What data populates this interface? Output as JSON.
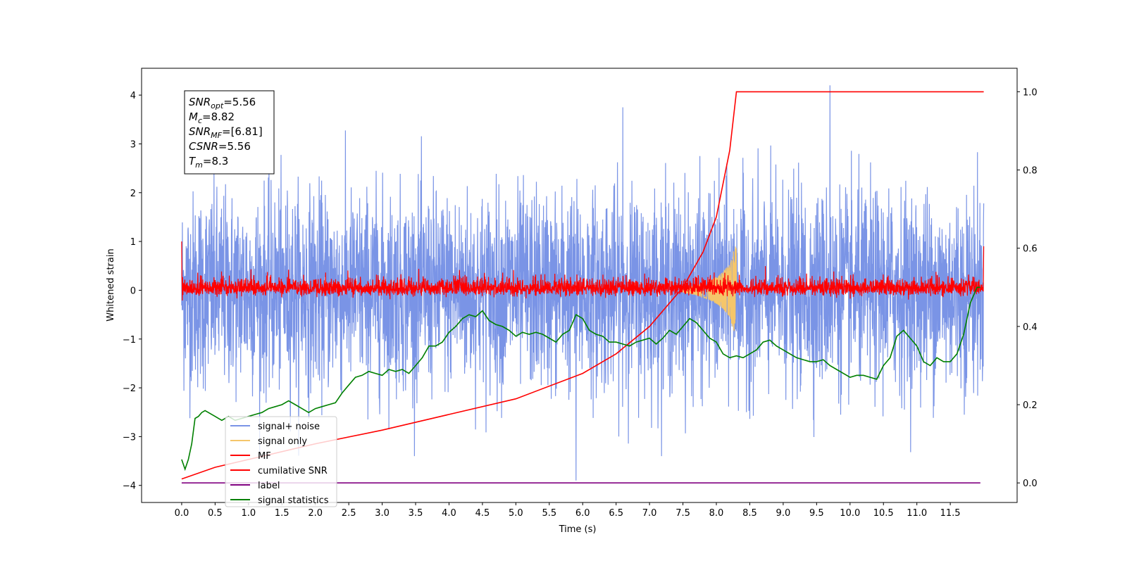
{
  "chart_data": {
    "type": "line",
    "xlabel": "Time (s)",
    "ylabel": "Whitened strain",
    "xlim": [
      -0.6,
      12.5
    ],
    "ylim": [
      -4.35,
      4.55
    ],
    "y2lim": [
      -0.05,
      1.06
    ],
    "x_ticks": [
      "0.0",
      "0.5",
      "1.0",
      "1.5",
      "2.0",
      "2.5",
      "3.0",
      "3.5",
      "4.0",
      "4.5",
      "5.0",
      "5.5",
      "6.0",
      "6.5",
      "7.0",
      "7.5",
      "8.0",
      "8.5",
      "9.0",
      "9.5",
      "10.0",
      "10.5",
      "11.0",
      "11.5"
    ],
    "y_ticks": [
      "4",
      "3",
      "2",
      "1",
      "0",
      "−1",
      "−2",
      "−3",
      "−4"
    ],
    "y2_ticks": [
      "1.0",
      "0.8",
      "0.6",
      "0.4",
      "0.2",
      "0.0"
    ],
    "legend_position": "lower left",
    "annotation": [
      {
        "name": "SNR",
        "sub": "opt",
        "value": "=5.56"
      },
      {
        "name": "M",
        "sub": "c",
        "value": "=8.82"
      },
      {
        "name": "SNR",
        "sub": "MF",
        "value": "=[6.81]"
      },
      {
        "name": "CSNR",
        "sub": "",
        "value": "=5.56"
      },
      {
        "name": "T",
        "sub": "m",
        "value": "=8.3"
      }
    ],
    "series": [
      {
        "name": "signal+ noise",
        "color": "#7a94e6",
        "axis": "left",
        "description_values": {
          "t_start": 0.0,
          "t_end": 12.0,
          "typical_range": [
            -2.6,
            2.8
          ],
          "peaks": [
            [
              5.9,
              -3.9
            ],
            [
              9.7,
              4.2
            ],
            [
              6.6,
              3.75
            ]
          ]
        }
      },
      {
        "name": "signal only",
        "color": "#f5c66a",
        "axis": "left",
        "x": [
          7.5,
          7.7,
          7.9,
          8.0,
          8.1,
          8.2,
          8.25,
          8.3
        ],
        "envelope": [
          0.05,
          0.1,
          0.2,
          0.28,
          0.38,
          0.55,
          0.8,
          0.95
        ]
      },
      {
        "name": "MF",
        "color": "#ff0000",
        "axis": "left",
        "description_values": {
          "t_start": 0.0,
          "t_end": 12.0,
          "typical_range": [
            -0.2,
            0.3
          ],
          "start_value": 1.0,
          "end_value": 0.9
        }
      },
      {
        "name": "cumilative SNR",
        "color": "#ff0000",
        "axis": "right",
        "x": [
          0.0,
          0.5,
          1.0,
          2.0,
          3.0,
          4.0,
          5.0,
          6.0,
          6.5,
          7.0,
          7.5,
          7.8,
          8.0,
          8.2,
          8.3,
          12.0
        ],
        "values": [
          0.01,
          0.04,
          0.06,
          0.1,
          0.135,
          0.175,
          0.215,
          0.28,
          0.33,
          0.4,
          0.5,
          0.59,
          0.68,
          0.85,
          1.0,
          1.0
        ]
      },
      {
        "name": "label",
        "color": "#800080",
        "axis": "right",
        "x": [
          0.0,
          11.95
        ],
        "values": [
          0.0,
          0.0
        ]
      },
      {
        "name": "signal statistics",
        "color": "#008000",
        "axis": "right",
        "x": [
          0.0,
          0.05,
          0.1,
          0.15,
          0.2,
          0.25,
          0.3,
          0.35,
          0.4,
          0.5,
          0.6,
          0.7,
          0.8,
          0.9,
          1.0,
          1.1,
          1.2,
          1.3,
          1.4,
          1.5,
          1.6,
          1.7,
          1.8,
          1.9,
          2.0,
          2.1,
          2.2,
          2.3,
          2.4,
          2.5,
          2.6,
          2.7,
          2.8,
          2.9,
          3.0,
          3.1,
          3.2,
          3.3,
          3.4,
          3.5,
          3.6,
          3.7,
          3.8,
          3.9,
          4.0,
          4.1,
          4.2,
          4.3,
          4.4,
          4.5,
          4.6,
          4.7,
          4.8,
          4.9,
          5.0,
          5.1,
          5.2,
          5.3,
          5.4,
          5.5,
          5.6,
          5.7,
          5.8,
          5.9,
          6.0,
          6.1,
          6.2,
          6.3,
          6.4,
          6.5,
          6.6,
          6.7,
          6.8,
          6.9,
          7.0,
          7.1,
          7.2,
          7.3,
          7.4,
          7.5,
          7.6,
          7.7,
          7.8,
          7.9,
          8.0,
          8.1,
          8.2,
          8.3,
          8.4,
          8.5,
          8.6,
          8.7,
          8.8,
          8.9,
          9.0,
          9.1,
          9.2,
          9.3,
          9.4,
          9.5,
          9.6,
          9.7,
          9.8,
          9.9,
          10.0,
          10.1,
          10.2,
          10.3,
          10.4,
          10.5,
          10.6,
          10.7,
          10.8,
          10.9,
          11.0,
          11.1,
          11.2,
          11.3,
          11.4,
          11.5,
          11.6,
          11.7,
          11.8,
          11.9,
          11.95
        ],
        "values": [
          0.06,
          0.035,
          0.06,
          0.1,
          0.165,
          0.17,
          0.18,
          0.185,
          0.18,
          0.17,
          0.16,
          0.17,
          0.16,
          0.165,
          0.17,
          0.175,
          0.18,
          0.19,
          0.195,
          0.2,
          0.21,
          0.2,
          0.19,
          0.18,
          0.19,
          0.195,
          0.2,
          0.205,
          0.23,
          0.25,
          0.27,
          0.275,
          0.285,
          0.28,
          0.275,
          0.29,
          0.285,
          0.29,
          0.28,
          0.3,
          0.32,
          0.35,
          0.35,
          0.36,
          0.385,
          0.4,
          0.42,
          0.43,
          0.425,
          0.44,
          0.415,
          0.405,
          0.4,
          0.39,
          0.375,
          0.385,
          0.38,
          0.385,
          0.38,
          0.37,
          0.36,
          0.38,
          0.39,
          0.43,
          0.42,
          0.39,
          0.38,
          0.375,
          0.36,
          0.36,
          0.355,
          0.35,
          0.36,
          0.365,
          0.37,
          0.355,
          0.37,
          0.39,
          0.38,
          0.4,
          0.42,
          0.41,
          0.39,
          0.37,
          0.36,
          0.33,
          0.32,
          0.325,
          0.32,
          0.33,
          0.34,
          0.36,
          0.365,
          0.35,
          0.34,
          0.33,
          0.32,
          0.315,
          0.31,
          0.31,
          0.315,
          0.3,
          0.29,
          0.28,
          0.27,
          0.275,
          0.275,
          0.27,
          0.265,
          0.3,
          0.32,
          0.375,
          0.39,
          0.37,
          0.35,
          0.31,
          0.3,
          0.32,
          0.31,
          0.31,
          0.33,
          0.38,
          0.46,
          0.5,
          0.5
        ]
      }
    ]
  }
}
